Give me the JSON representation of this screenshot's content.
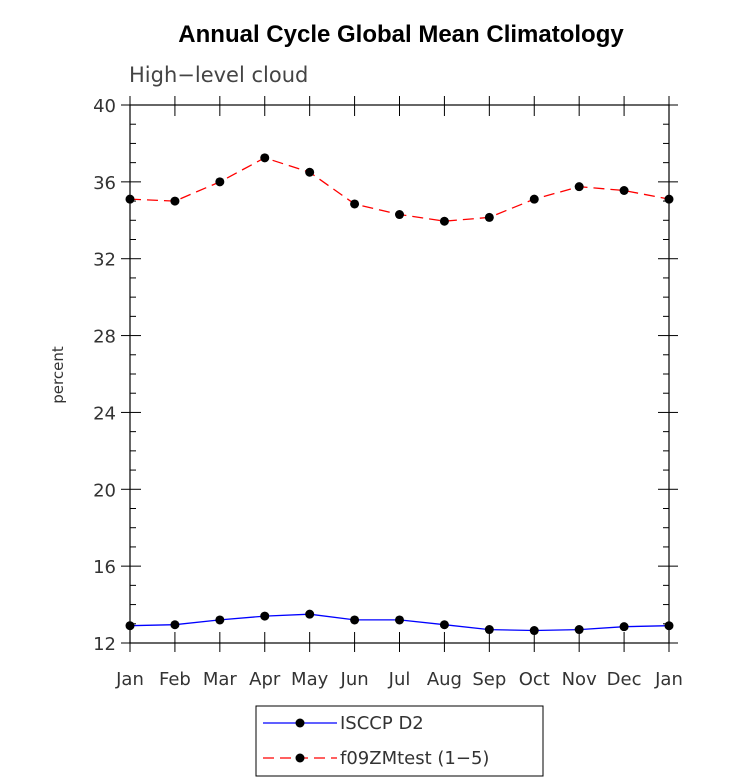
{
  "chart_data": {
    "type": "line",
    "title": "Annual Cycle Global Mean Climatology",
    "subtitle": "High−level cloud",
    "ylabel": "percent",
    "xlabel": "",
    "categories": [
      "Jan",
      "Feb",
      "Mar",
      "Apr",
      "May",
      "Jun",
      "Jul",
      "Aug",
      "Sep",
      "Oct",
      "Nov",
      "Dec",
      "Jan"
    ],
    "ylim": [
      12,
      40
    ],
    "yticks": [
      12,
      16,
      20,
      24,
      28,
      32,
      36,
      40
    ],
    "yminor_step": 1,
    "grid": false,
    "legend_position": "bottom-center",
    "series": [
      {
        "name": "ISCCP D2",
        "color": "#0000ff",
        "line_style": "solid",
        "marker": "filled-circle",
        "values": [
          12.9,
          12.95,
          13.2,
          13.4,
          13.5,
          13.2,
          13.2,
          12.95,
          12.7,
          12.65,
          12.7,
          12.85,
          12.9
        ]
      },
      {
        "name": "f09ZMtest (1−5)",
        "color": "#ff0000",
        "line_style": "dashed",
        "marker": "filled-circle",
        "values": [
          35.1,
          35.0,
          36.0,
          37.25,
          36.5,
          34.85,
          34.3,
          33.95,
          34.15,
          35.1,
          35.75,
          35.55,
          35.1
        ]
      }
    ]
  }
}
